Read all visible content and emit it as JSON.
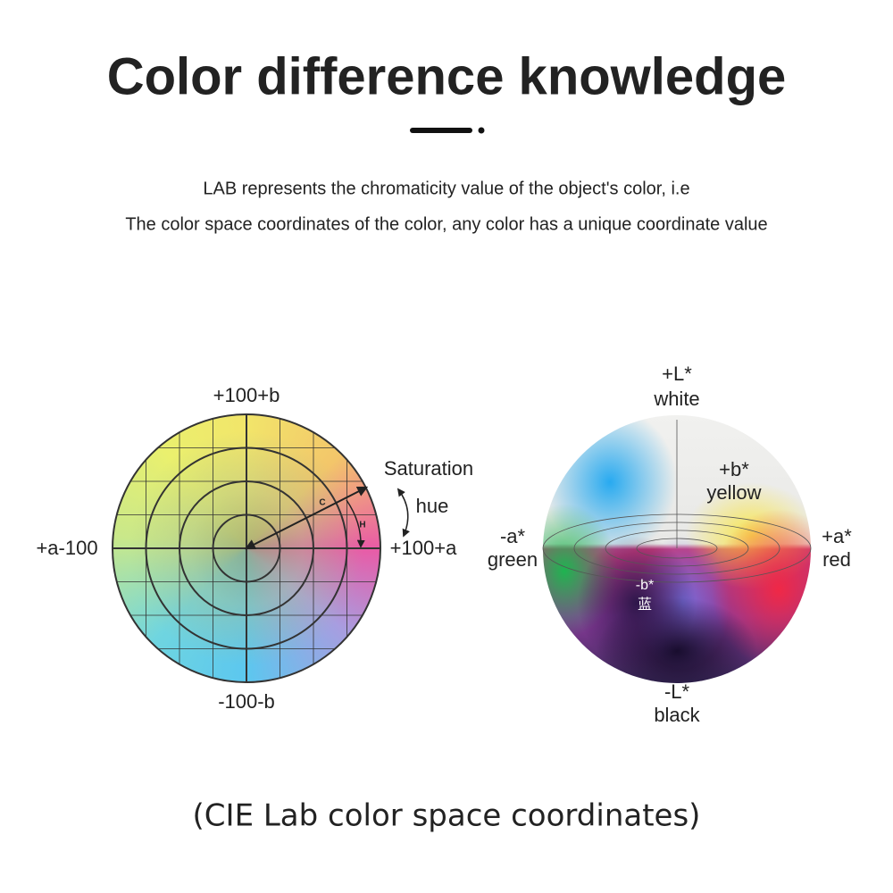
{
  "header": {
    "title": "Color difference knowledge",
    "lines": [
      "LAB represents the chromaticity value of the object's color, i.e",
      "The color space coordinates of the color, any color has a unique coordinate value"
    ]
  },
  "left_diagram": {
    "top_label": "+100+b",
    "bottom_label": "-100-b",
    "left_label": "+a-100",
    "right_label": "+100+a",
    "saturation": "Saturation",
    "hue": "hue",
    "c": "C",
    "h": "H"
  },
  "right_diagram": {
    "top_label": "+L*",
    "top_name": "white",
    "b_label": "+b*",
    "b_name": "yellow",
    "left_label": "-a*",
    "left_name": "green",
    "right_label": "+a*",
    "right_name": "red",
    "minus_b_label": "-b*",
    "minus_b_name": "蓝",
    "bottom_label": "-L*",
    "bottom_name": "black"
  },
  "caption": "(CIE Lab color space coordinates)"
}
